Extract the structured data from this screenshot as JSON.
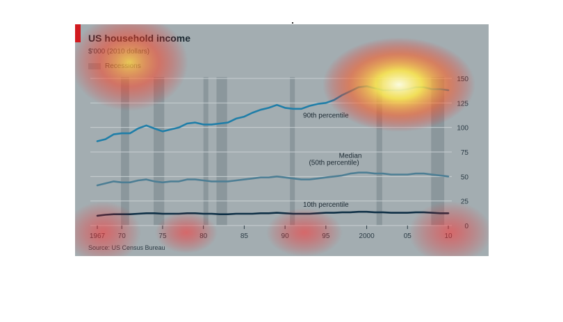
{
  "title": "US household income",
  "subtitle": "$'000 (2010 dollars)",
  "legend_label": "Recessions",
  "source": "Source: US Census Bureau",
  "chart_data": {
    "type": "line",
    "title": "US household income",
    "subtitle": "$'000 (2010 dollars)",
    "source": "Source: US Census Bureau",
    "xlim": [
      1967,
      2010
    ],
    "ylim": [
      0,
      150
    ],
    "y_axis_side": "right",
    "grid": true,
    "x_ticks": [
      {
        "value": 1967,
        "label": "1967"
      },
      {
        "value": 1970,
        "label": "70"
      },
      {
        "value": 1975,
        "label": "75"
      },
      {
        "value": 1980,
        "label": "80"
      },
      {
        "value": 1985,
        "label": "85"
      },
      {
        "value": 1990,
        "label": "90"
      },
      {
        "value": 1995,
        "label": "95"
      },
      {
        "value": 2000,
        "label": "2000"
      },
      {
        "value": 2005,
        "label": "05"
      },
      {
        "value": 2010,
        "label": "10"
      }
    ],
    "y_ticks": [
      0,
      25,
      50,
      75,
      100,
      125,
      150
    ],
    "recessions": [
      [
        1969.9,
        1970.9
      ],
      [
        1973.9,
        1975.2
      ],
      [
        1980.0,
        1980.6
      ],
      [
        1981.6,
        1982.9
      ],
      [
        1990.6,
        1991.2
      ],
      [
        2001.2,
        2001.9
      ],
      [
        2007.9,
        2009.5
      ]
    ],
    "recession_label": "Recessions",
    "series": [
      {
        "name": "90th percentile",
        "color": "#1f7ea8",
        "x": [
          1967,
          1968,
          1969,
          1970,
          1971,
          1972,
          1973,
          1974,
          1975,
          1976,
          1977,
          1978,
          1979,
          1980,
          1981,
          1982,
          1983,
          1984,
          1985,
          1986,
          1987,
          1988,
          1989,
          1990,
          1991,
          1992,
          1993,
          1994,
          1995,
          1996,
          1997,
          1998,
          1999,
          2000,
          2001,
          2002,
          2003,
          2004,
          2005,
          2006,
          2007,
          2008,
          2009,
          2010
        ],
        "values": [
          86,
          88,
          93,
          94,
          94,
          99,
          102,
          99,
          96,
          98,
          100,
          104,
          105,
          103,
          103,
          104,
          105,
          109,
          111,
          115,
          118,
          120,
          123,
          120,
          119,
          119,
          122,
          124,
          125,
          128,
          133,
          137,
          141,
          142,
          140,
          138,
          138,
          138,
          139,
          141,
          141,
          139,
          139,
          138
        ]
      },
      {
        "name": "Median (50th percentile)",
        "color": "#4d7e94",
        "x": [
          1967,
          1968,
          1969,
          1970,
          1971,
          1972,
          1973,
          1974,
          1975,
          1976,
          1977,
          1978,
          1979,
          1980,
          1981,
          1982,
          1983,
          1984,
          1985,
          1986,
          1987,
          1988,
          1989,
          1990,
          1991,
          1992,
          1993,
          1994,
          1995,
          1996,
          1997,
          1998,
          1999,
          2000,
          2001,
          2002,
          2003,
          2004,
          2005,
          2006,
          2007,
          2008,
          2009,
          2010
        ],
        "values": [
          41,
          43,
          45,
          44,
          44,
          46,
          47,
          45,
          44,
          45,
          45,
          47,
          47,
          46,
          45,
          45,
          45,
          46,
          47,
          48,
          49,
          49,
          50,
          49,
          48,
          47,
          47,
          48,
          49,
          50,
          51,
          53,
          54,
          54,
          53,
          53,
          52,
          52,
          52,
          53,
          53,
          52,
          51,
          50
        ]
      },
      {
        "name": "10th percentile",
        "color": "#0e2f45",
        "x": [
          1967,
          1968,
          1969,
          1970,
          1971,
          1972,
          1973,
          1974,
          1975,
          1976,
          1977,
          1978,
          1979,
          1980,
          1981,
          1982,
          1983,
          1984,
          1985,
          1986,
          1987,
          1988,
          1989,
          1990,
          1991,
          1992,
          1993,
          1994,
          1995,
          1996,
          1997,
          1998,
          1999,
          2000,
          2001,
          2002,
          2003,
          2004,
          2005,
          2006,
          2007,
          2008,
          2009,
          2010
        ],
        "values": [
          10,
          11,
          11.5,
          11.5,
          11.5,
          12,
          12.5,
          12.5,
          12,
          12,
          12,
          12.5,
          12.5,
          12,
          12,
          11.5,
          11.5,
          12,
          12,
          12,
          12.5,
          12.5,
          13,
          12.5,
          12,
          12,
          12,
          12.5,
          13,
          13,
          13.5,
          13.5,
          14,
          14,
          13.5,
          13.5,
          13,
          13,
          13,
          13.5,
          13.5,
          13,
          12.5,
          12.5
        ]
      }
    ],
    "annotations": [
      {
        "text": "90th percentile",
        "x": 1995,
        "y": 110
      },
      {
        "text": "Median",
        "x": 1998,
        "y": 69
      },
      {
        "text": "(50th percentile)",
        "x": 1996,
        "y": 62
      },
      {
        "text": "10th percentile",
        "x": 1995,
        "y": 19
      }
    ]
  }
}
